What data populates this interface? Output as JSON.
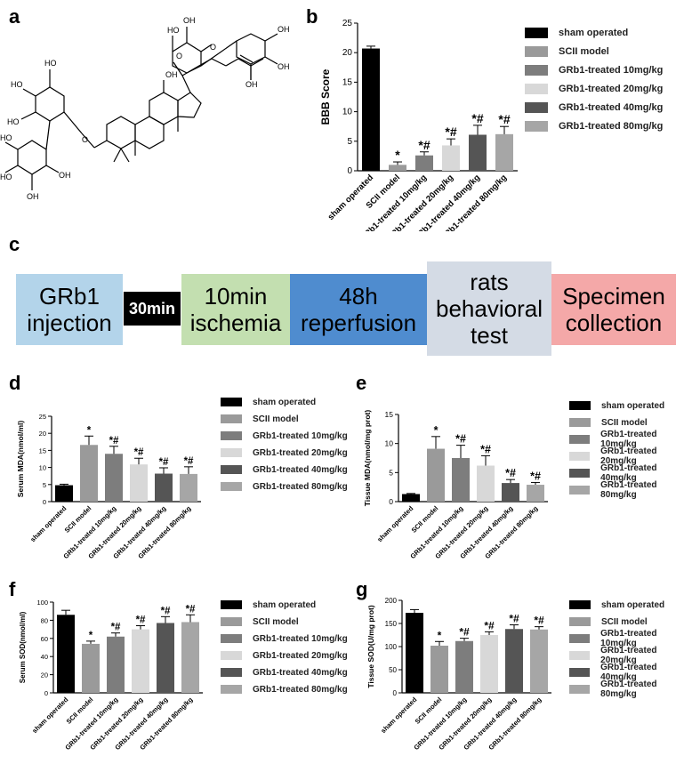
{
  "panel_labels": [
    "a",
    "b",
    "c",
    "d",
    "e",
    "f",
    "g"
  ],
  "colors": {
    "bars": [
      "#000000",
      "#9a9a9a",
      "#7d7d7d",
      "#d8d8d8",
      "#555555",
      "#a6a6a6"
    ]
  },
  "flow": {
    "steps": [
      {
        "label": "GRb1\ninjection",
        "color": "#b3d4ea"
      },
      {
        "label": "30min",
        "color": "#000000",
        "text_color": "#ffffff"
      },
      {
        "label": "10min\nischemia",
        "color": "#c3dfb0"
      },
      {
        "label": "48h\nreperfusion",
        "color": "#4f8ccf"
      },
      {
        "label": "rats\nbehavioral\ntest",
        "color": "#d4dbe5"
      },
      {
        "label": "Specimen\ncollection",
        "color": "#f4a8a8"
      }
    ]
  },
  "chart_data": [
    {
      "panel": "b",
      "type": "bar",
      "ylabel": "BBB Score",
      "ylim": [
        0,
        25
      ],
      "yticks": [
        0,
        5,
        10,
        15,
        20,
        25
      ],
      "categories": [
        "sham operated",
        "SCII model",
        "GRb1-treated 10mg/kg",
        "GRb1-treated 20mg/kg",
        "GRb1-treated 40mg/kg",
        "GRb1-treated 80mg/kg"
      ],
      "values": [
        20.7,
        1.0,
        2.6,
        4.3,
        6.1,
        6.2
      ],
      "errors": [
        0.4,
        0.5,
        0.6,
        1.1,
        1.6,
        1.3
      ],
      "annotations": [
        "",
        "*",
        "*#",
        "*#",
        "*#",
        "*#"
      ],
      "legend": [
        "sham operated",
        "SCII model",
        "GRb1-treated 10mg/kg",
        "GRb1-treated 20mg/kg",
        "GRb1-treated 40mg/kg",
        "GRb1-treated 80mg/kg"
      ]
    },
    {
      "panel": "d",
      "type": "bar",
      "ylabel": "Serum MDA(nmol/ml)",
      "ylim": [
        0,
        25
      ],
      "yticks": [
        0,
        5,
        10,
        15,
        20,
        25
      ],
      "categories": [
        "sham operated",
        "SCII model",
        "GRb1-treated 10mg/kg",
        "GRb1-treated 20mg/kg",
        "GRb1-treated 40mg/kg",
        "GRb1-treated 80mg/kg"
      ],
      "values": [
        4.8,
        16.6,
        14.0,
        10.9,
        8.2,
        8.1
      ],
      "errors": [
        0.3,
        2.6,
        2.2,
        1.8,
        1.7,
        2.1
      ],
      "annotations": [
        "",
        "*",
        "*#",
        "*#",
        "*#",
        "*#"
      ],
      "legend": [
        "sham operated",
        "SCII model",
        "GRb1-treated 10mg/kg",
        "GRb1-treated 20mg/kg",
        "GRb1-treated 40mg/kg",
        "GRb1-treated 80mg/kg"
      ]
    },
    {
      "panel": "e",
      "type": "bar",
      "ylabel": "Tissue MDA(nmol/mg prot)",
      "ylim": [
        0,
        15
      ],
      "yticks": [
        0,
        5,
        10,
        15
      ],
      "categories": [
        "sham operated",
        "SCII model",
        "GRb1-treated 10mg/kg",
        "GRb1-treated 20mg/kg",
        "GRb1-treated 40mg/kg",
        "GRb1-treated 80mg/kg"
      ],
      "values": [
        1.3,
        9.1,
        7.5,
        6.2,
        3.2,
        2.9
      ],
      "errors": [
        0.1,
        2.1,
        2.2,
        1.7,
        0.6,
        0.4
      ],
      "annotations": [
        "",
        "*",
        "*#",
        "*#",
        "*#",
        "*#"
      ],
      "legend": [
        "sham operated",
        "SCII model",
        "GRb1-treated 10mg/kg",
        "GRb1-treated 20mg/kg",
        "GRb1-treated 40mg/kg",
        "GRb1-treated 80mg/kg"
      ]
    },
    {
      "panel": "f",
      "type": "bar",
      "ylabel": "Serum SOD(nmol/ml)",
      "ylim": [
        0,
        100
      ],
      "yticks": [
        0,
        20,
        40,
        60,
        80,
        100
      ],
      "categories": [
        "sham operated",
        "SCII model",
        "GRb1-treated 10mg/kg",
        "GRb1-treated 20mg/kg",
        "GRb1-treated 40mg/kg",
        "GRb1-treated 80mg/kg"
      ],
      "values": [
        86,
        54,
        62,
        70,
        77,
        78
      ],
      "errors": [
        5,
        3,
        4,
        4,
        7,
        8
      ],
      "annotations": [
        "",
        "*",
        "*#",
        "*#",
        "*#",
        "*#"
      ],
      "legend": [
        "sham operated",
        "SCII model",
        "GRb1-treated 10mg/kg",
        "GRb1-treated 20mg/kg",
        "GRb1-treated 40mg/kg",
        "GRb1-treated 80mg/kg"
      ]
    },
    {
      "panel": "g",
      "type": "bar",
      "ylabel": "Tissue SOD(U/mg prot)",
      "ylim": [
        0,
        200
      ],
      "yticks": [
        0,
        50,
        100,
        150,
        200
      ],
      "categories": [
        "sham operated",
        "SCII model",
        "GRb1-treated 10mg/kg",
        "GRb1-treated 20mg/kg",
        "GRb1-treated 40mg/kg",
        "GRb1-treated 80mg/kg"
      ],
      "values": [
        173,
        102,
        112,
        125,
        138,
        137
      ],
      "errors": [
        7,
        9,
        6,
        7,
        9,
        6
      ],
      "annotations": [
        "",
        "*",
        "*#",
        "*#",
        "*#",
        "*#"
      ],
      "legend": [
        "sham operated",
        "SCII model",
        "GRb1-treated 10mg/kg",
        "GRb1-treated 20mg/kg",
        "GRb1-treated 40mg/kg",
        "GRb1-treated 80mg/kg"
      ]
    }
  ]
}
